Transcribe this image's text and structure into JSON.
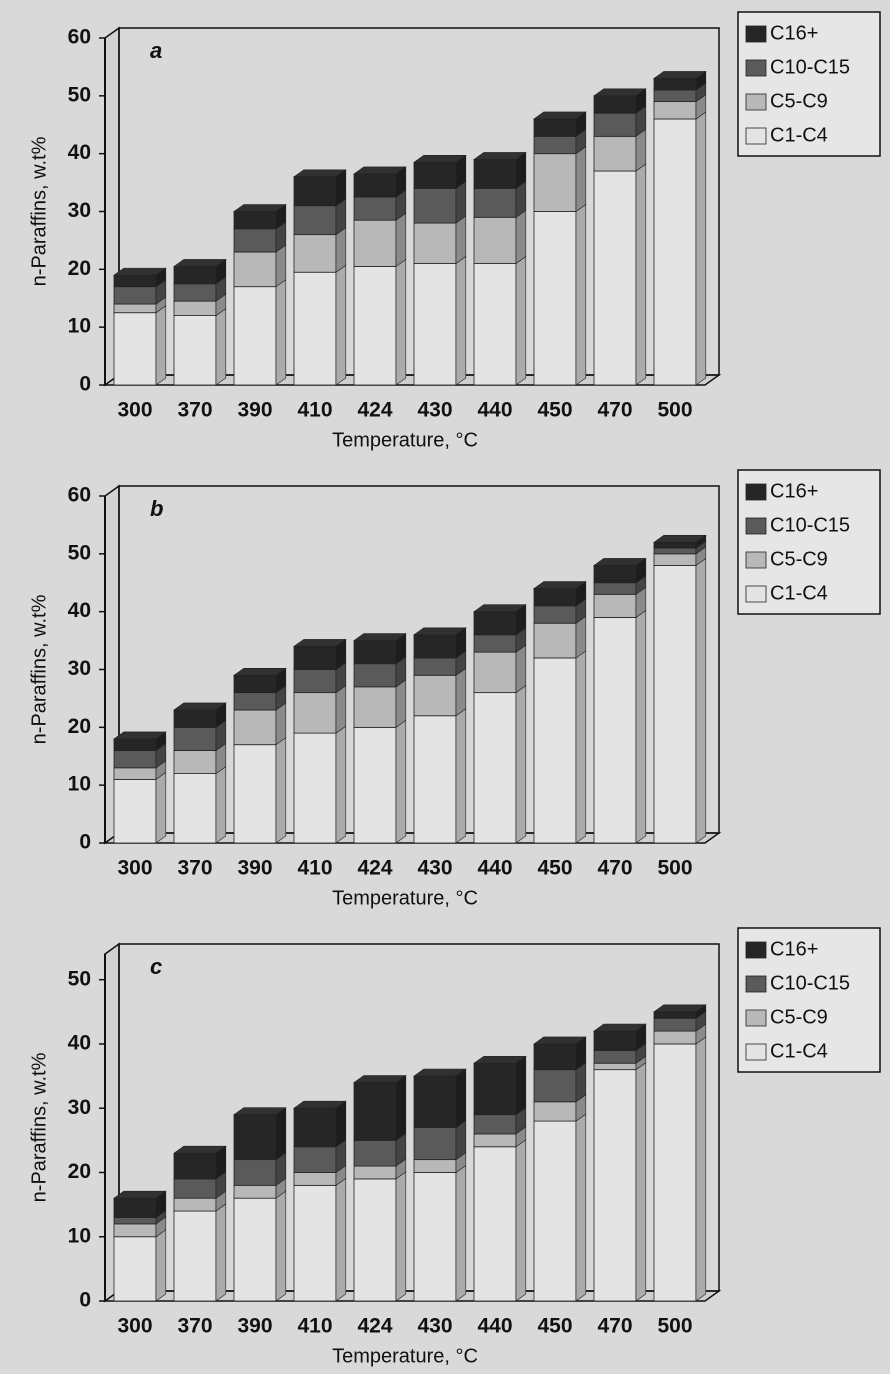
{
  "chart_data": [
    {
      "type": "bar",
      "stacked": true,
      "panel": "a",
      "x_label": "Temperature, °C",
      "y_label": "n-Paraffins, w.t%",
      "categories": [
        "300",
        "370",
        "390",
        "410",
        "424",
        "430",
        "440",
        "450",
        "470",
        "500"
      ],
      "series": [
        {
          "name": "C1-C4",
          "color": "#e4e4e4",
          "values": [
            12.5,
            12,
            17,
            19.5,
            20.5,
            21,
            21,
            30,
            37,
            46
          ]
        },
        {
          "name": "C5-C9",
          "color": "#b8b8b8",
          "values": [
            1.5,
            2.5,
            6,
            6.5,
            8,
            7,
            8,
            10,
            6,
            3
          ]
        },
        {
          "name": "C10-C15",
          "color": "#5a5a5a",
          "values": [
            3,
            3,
            4,
            5,
            4,
            6,
            5,
            3,
            4,
            2
          ]
        },
        {
          "name": "C16+",
          "color": "#262626",
          "values": [
            2,
            3,
            3,
            5,
            4,
            4.5,
            5,
            3,
            3,
            2
          ]
        }
      ],
      "ylim": [
        0,
        60
      ],
      "yticks": [
        0,
        10,
        20,
        30,
        40,
        50,
        60
      ],
      "legend": "upper right"
    },
    {
      "type": "bar",
      "stacked": true,
      "panel": "b",
      "x_label": "Temperature, °C",
      "y_label": "n-Paraffins, w.t%",
      "categories": [
        "300",
        "370",
        "390",
        "410",
        "424",
        "430",
        "440",
        "450",
        "470",
        "500"
      ],
      "series": [
        {
          "name": "C1-C4",
          "color": "#e4e4e4",
          "values": [
            11,
            12,
            17,
            19,
            20,
            22,
            26,
            32,
            39,
            48
          ]
        },
        {
          "name": "C5-C9",
          "color": "#b8b8b8",
          "values": [
            2,
            4,
            6,
            7,
            7,
            7,
            7,
            6,
            4,
            2
          ]
        },
        {
          "name": "C10-C15",
          "color": "#5a5a5a",
          "values": [
            3,
            4,
            3,
            4,
            4,
            3,
            3,
            3,
            2,
            1
          ]
        },
        {
          "name": "C16+",
          "color": "#262626",
          "values": [
            2,
            3,
            3,
            4,
            4,
            4,
            4,
            3,
            3,
            1
          ]
        }
      ],
      "ylim": [
        0,
        60
      ],
      "yticks": [
        0,
        10,
        20,
        30,
        40,
        50,
        60
      ],
      "legend": "upper right"
    },
    {
      "type": "bar",
      "stacked": true,
      "panel": "c",
      "x_label": "Temperature, °C",
      "y_label": "n-Paraffins, w.t%",
      "categories": [
        "300",
        "370",
        "390",
        "410",
        "424",
        "430",
        "440",
        "450",
        "470",
        "500"
      ],
      "series": [
        {
          "name": "C1-C4",
          "color": "#e4e4e4",
          "values": [
            10,
            14,
            16,
            18,
            19,
            20,
            24,
            28,
            36,
            40
          ]
        },
        {
          "name": "C5-C9",
          "color": "#b8b8b8",
          "values": [
            2,
            2,
            2,
            2,
            2,
            2,
            2,
            3,
            1,
            2
          ]
        },
        {
          "name": "C10-C15",
          "color": "#5a5a5a",
          "values": [
            1,
            3,
            4,
            4,
            4,
            5,
            3,
            5,
            2,
            2
          ]
        },
        {
          "name": "C16+",
          "color": "#262626",
          "values": [
            3,
            4,
            7,
            6,
            9,
            8,
            8,
            4,
            3,
            1
          ]
        }
      ],
      "ylim": [
        0,
        54
      ],
      "yticks": [
        0,
        10,
        20,
        30,
        40,
        50
      ],
      "legend": "upper right"
    }
  ]
}
